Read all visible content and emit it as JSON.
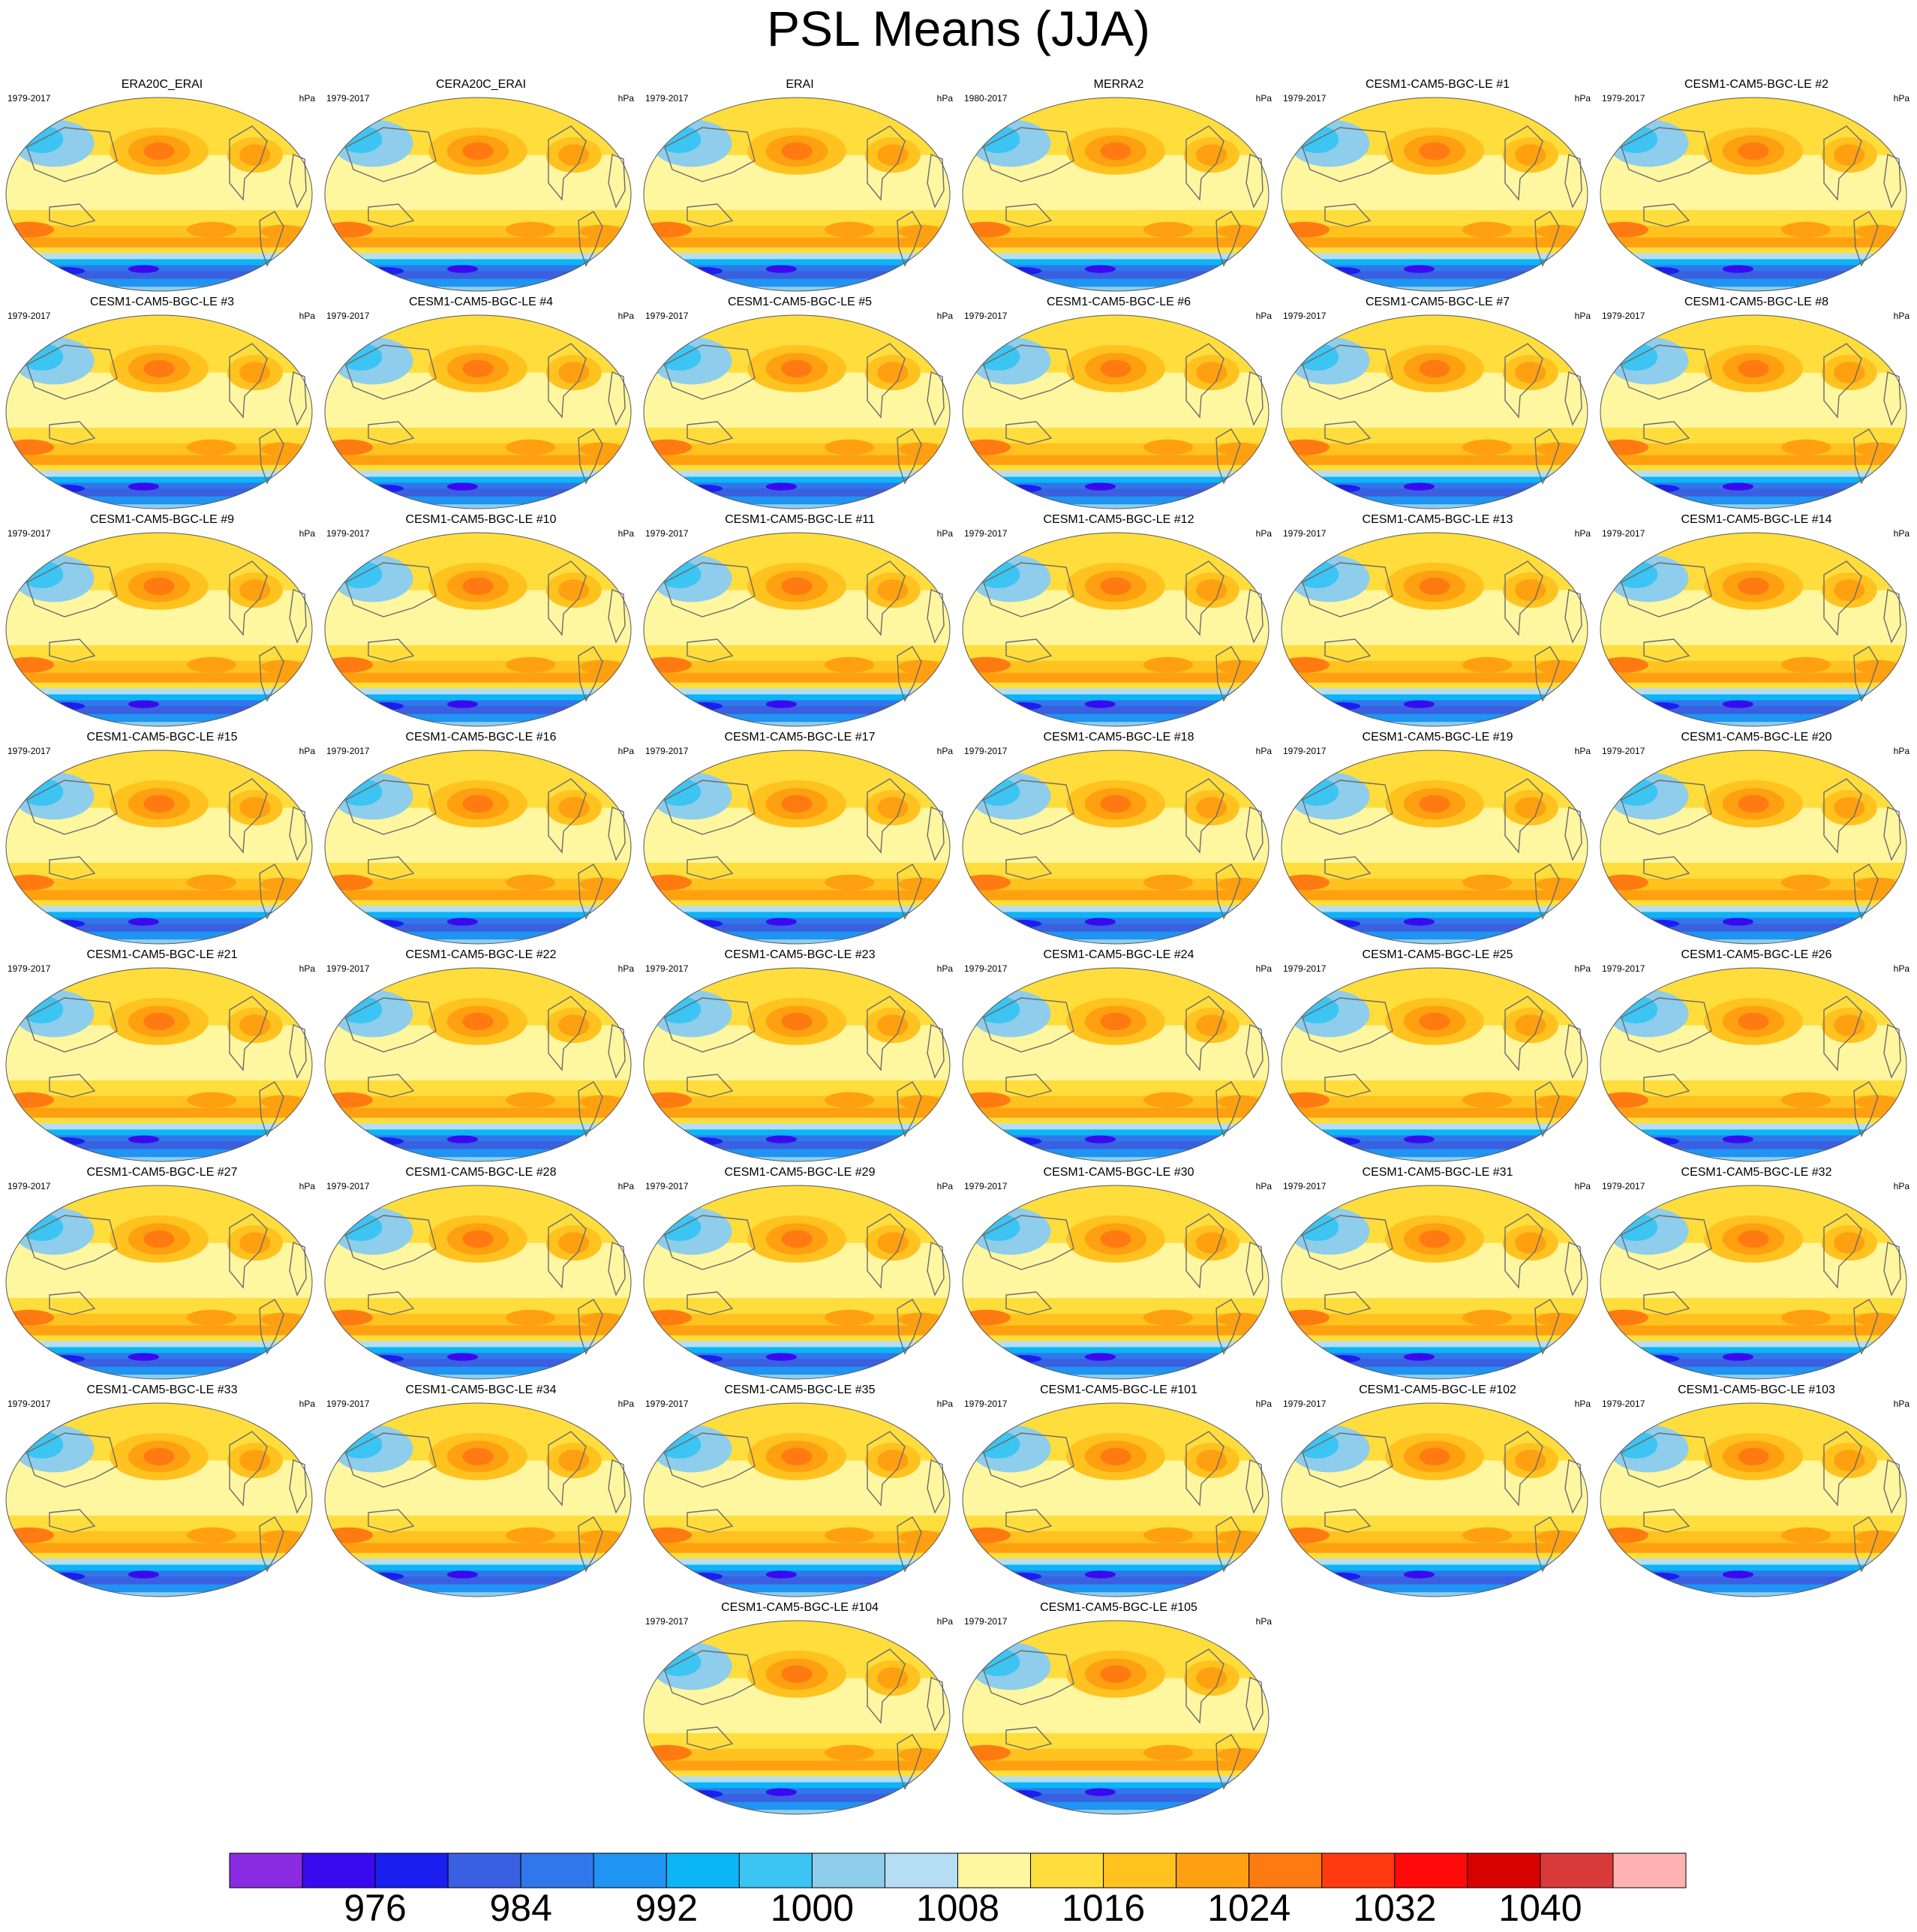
{
  "title": "PSL Means (JJA)",
  "units": "hPa",
  "panels": [
    {
      "name": "ERA20C_ERAI",
      "years": "1979-2017"
    },
    {
      "name": "CERA20C_ERAI",
      "years": "1979-2017"
    },
    {
      "name": "ERAI",
      "years": "1979-2017"
    },
    {
      "name": "MERRA2",
      "years": "1980-2017"
    },
    {
      "name": "CESM1-CAM5-BGC-LE #1",
      "years": "1979-2017"
    },
    {
      "name": "CESM1-CAM5-BGC-LE #2",
      "years": "1979-2017"
    },
    {
      "name": "CESM1-CAM5-BGC-LE #3",
      "years": "1979-2017"
    },
    {
      "name": "CESM1-CAM5-BGC-LE #4",
      "years": "1979-2017"
    },
    {
      "name": "CESM1-CAM5-BGC-LE #5",
      "years": "1979-2017"
    },
    {
      "name": "CESM1-CAM5-BGC-LE #6",
      "years": "1979-2017"
    },
    {
      "name": "CESM1-CAM5-BGC-LE #7",
      "years": "1979-2017"
    },
    {
      "name": "CESM1-CAM5-BGC-LE #8",
      "years": "1979-2017"
    },
    {
      "name": "CESM1-CAM5-BGC-LE #9",
      "years": "1979-2017"
    },
    {
      "name": "CESM1-CAM5-BGC-LE #10",
      "years": "1979-2017"
    },
    {
      "name": "CESM1-CAM5-BGC-LE #11",
      "years": "1979-2017"
    },
    {
      "name": "CESM1-CAM5-BGC-LE #12",
      "years": "1979-2017"
    },
    {
      "name": "CESM1-CAM5-BGC-LE #13",
      "years": "1979-2017"
    },
    {
      "name": "CESM1-CAM5-BGC-LE #14",
      "years": "1979-2017"
    },
    {
      "name": "CESM1-CAM5-BGC-LE #15",
      "years": "1979-2017"
    },
    {
      "name": "CESM1-CAM5-BGC-LE #16",
      "years": "1979-2017"
    },
    {
      "name": "CESM1-CAM5-BGC-LE #17",
      "years": "1979-2017"
    },
    {
      "name": "CESM1-CAM5-BGC-LE #18",
      "years": "1979-2017"
    },
    {
      "name": "CESM1-CAM5-BGC-LE #19",
      "years": "1979-2017"
    },
    {
      "name": "CESM1-CAM5-BGC-LE #20",
      "years": "1979-2017"
    },
    {
      "name": "CESM1-CAM5-BGC-LE #21",
      "years": "1979-2017"
    },
    {
      "name": "CESM1-CAM5-BGC-LE #22",
      "years": "1979-2017"
    },
    {
      "name": "CESM1-CAM5-BGC-LE #23",
      "years": "1979-2017"
    },
    {
      "name": "CESM1-CAM5-BGC-LE #24",
      "years": "1979-2017"
    },
    {
      "name": "CESM1-CAM5-BGC-LE #25",
      "years": "1979-2017"
    },
    {
      "name": "CESM1-CAM5-BGC-LE #26",
      "years": "1979-2017"
    },
    {
      "name": "CESM1-CAM5-BGC-LE #27",
      "years": "1979-2017"
    },
    {
      "name": "CESM1-CAM5-BGC-LE #28",
      "years": "1979-2017"
    },
    {
      "name": "CESM1-CAM5-BGC-LE #29",
      "years": "1979-2017"
    },
    {
      "name": "CESM1-CAM5-BGC-LE #30",
      "years": "1979-2017"
    },
    {
      "name": "CESM1-CAM5-BGC-LE #31",
      "years": "1979-2017"
    },
    {
      "name": "CESM1-CAM5-BGC-LE #32",
      "years": "1979-2017"
    },
    {
      "name": "CESM1-CAM5-BGC-LE #33",
      "years": "1979-2017"
    },
    {
      "name": "CESM1-CAM5-BGC-LE #34",
      "years": "1979-2017"
    },
    {
      "name": "CESM1-CAM5-BGC-LE #35",
      "years": "1979-2017"
    },
    {
      "name": "CESM1-CAM5-BGC-LE #101",
      "years": "1979-2017"
    },
    {
      "name": "CESM1-CAM5-BGC-LE #102",
      "years": "1979-2017"
    },
    {
      "name": "CESM1-CAM5-BGC-LE #103",
      "years": "1979-2017"
    },
    {
      "name": "CESM1-CAM5-BGC-LE #104",
      "years": "1979-2017"
    },
    {
      "name": "CESM1-CAM5-BGC-LE #105",
      "years": "1979-2017"
    }
  ],
  "colorbar": {
    "colors": [
      "#8a2be2",
      "#3a0aef",
      "#1a1ff0",
      "#3a5fe0",
      "#2f78ea",
      "#1f94f2",
      "#0bb5f7",
      "#3cc4f2",
      "#8ecdec",
      "#b5def5",
      "#fff6a0",
      "#ffdd3c",
      "#ffc21f",
      "#ffa010",
      "#ff7b12",
      "#ff3a10",
      "#ff0a0a",
      "#d80202",
      "#d83a3a",
      "#ffb2b2"
    ],
    "labels": [
      "976",
      "984",
      "992",
      "1000",
      "1008",
      "1016",
      "1024",
      "1032",
      "1040"
    ]
  },
  "chart_data": {
    "type": "heatmap",
    "title": "PSL Means (JJA)",
    "variable": "PSL",
    "season": "JJA",
    "units": "hPa",
    "contour_levels": [
      972,
      976,
      980,
      984,
      988,
      992,
      996,
      1000,
      1004,
      1008,
      1012,
      1016,
      1020,
      1024,
      1028,
      1032,
      1036,
      1040,
      1044
    ],
    "projection": "Robinson, Pacific-centered",
    "panel_count": 44
  }
}
